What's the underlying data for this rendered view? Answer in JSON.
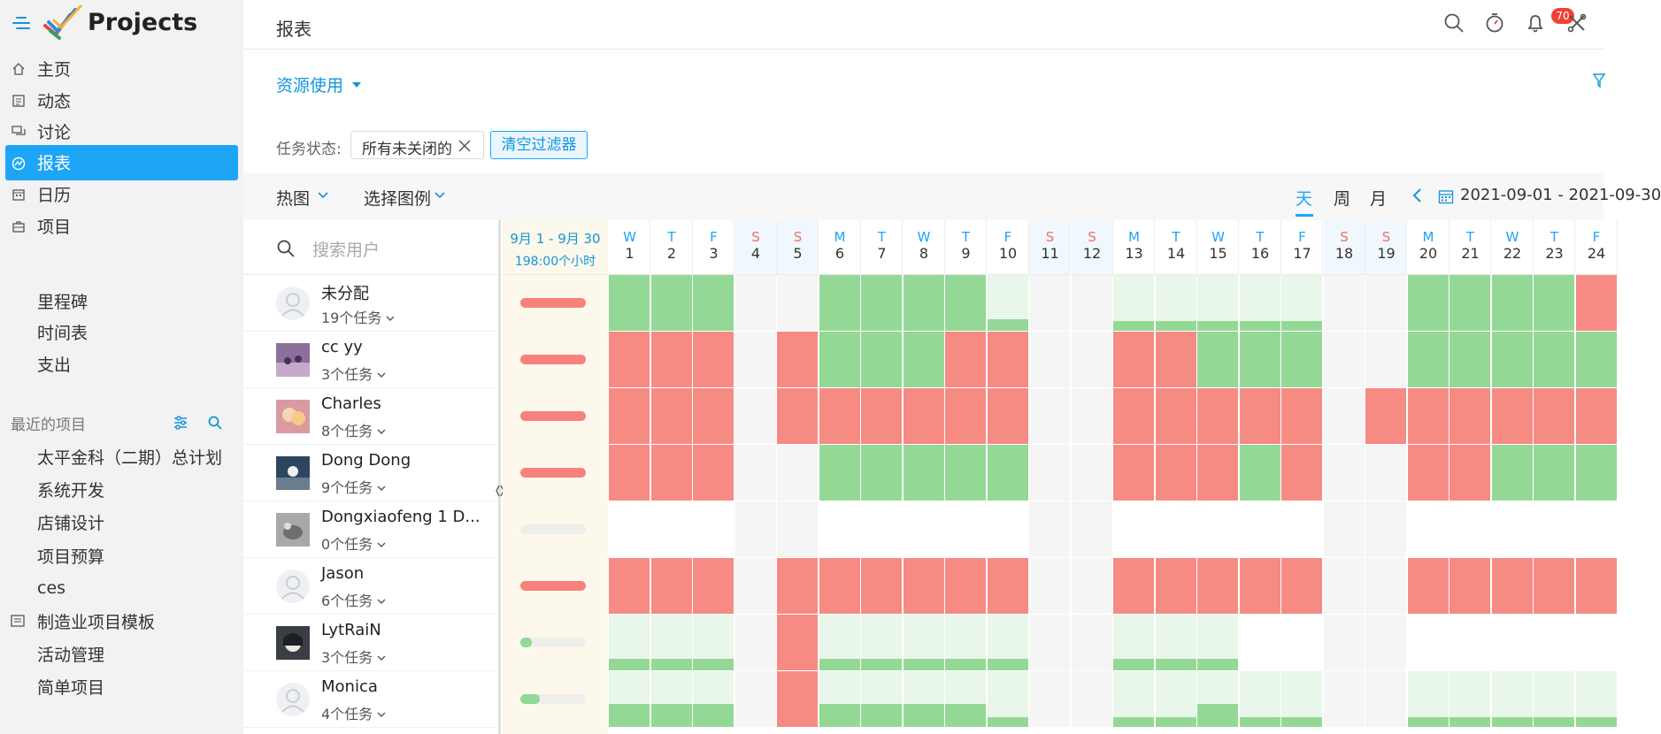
{
  "app": {
    "title": "Projects"
  },
  "nav": [
    {
      "label": "主页",
      "icon": "home-icon",
      "active": false
    },
    {
      "label": "动态",
      "icon": "feed-icon",
      "active": false
    },
    {
      "label": "讨论",
      "icon": "discussion-icon",
      "active": false
    },
    {
      "label": "报表",
      "icon": "report-icon",
      "active": true
    },
    {
      "label": "日历",
      "icon": "calendar-icon",
      "active": false
    },
    {
      "label": "项目",
      "icon": "briefcase-icon",
      "active": false
    }
  ],
  "subnav": [
    "里程碑",
    "时间表",
    "支出"
  ],
  "recent": {
    "title": "最近的项目",
    "items": [
      "太平金科（二期）总计划",
      "系统开发",
      "店铺设计",
      "项目预算",
      "ces",
      "制造业项目模板",
      "活动管理",
      "简单项目"
    ]
  },
  "header": {
    "title": "报表",
    "notifications": "70"
  },
  "report": {
    "selector": "资源使用",
    "filter_label": "任务状态:",
    "filter_chip": "所有未关闭的",
    "clear_filters": "清空过滤器",
    "view_type": "热图",
    "legend_select": "选择图例",
    "tabs": [
      "天",
      "周",
      "月"
    ],
    "date_range": "2021-09-01 - 2021-09-30"
  },
  "grid": {
    "search_placeholder": "搜索用户",
    "summary_range": "9月 1 - 9月 30",
    "summary_hours": "198:00个小时",
    "days": [
      {
        "l": "W",
        "n": "1",
        "we": false
      },
      {
        "l": "T",
        "n": "2",
        "we": false
      },
      {
        "l": "F",
        "n": "3",
        "we": false
      },
      {
        "l": "S",
        "n": "4",
        "we": true
      },
      {
        "l": "S",
        "n": "5",
        "we": true
      },
      {
        "l": "M",
        "n": "6",
        "we": false
      },
      {
        "l": "T",
        "n": "7",
        "we": false
      },
      {
        "l": "W",
        "n": "8",
        "we": false
      },
      {
        "l": "T",
        "n": "9",
        "we": false
      },
      {
        "l": "F",
        "n": "10",
        "we": false
      },
      {
        "l": "S",
        "n": "11",
        "we": true
      },
      {
        "l": "S",
        "n": "12",
        "we": true
      },
      {
        "l": "M",
        "n": "13",
        "we": false
      },
      {
        "l": "T",
        "n": "14",
        "we": false
      },
      {
        "l": "W",
        "n": "15",
        "we": false
      },
      {
        "l": "T",
        "n": "16",
        "we": false
      },
      {
        "l": "F",
        "n": "17",
        "we": false
      },
      {
        "l": "S",
        "n": "18",
        "we": true
      },
      {
        "l": "S",
        "n": "19",
        "we": true
      },
      {
        "l": "M",
        "n": "20",
        "we": false
      },
      {
        "l": "T",
        "n": "21",
        "we": false
      },
      {
        "l": "W",
        "n": "22",
        "we": false
      },
      {
        "l": "T",
        "n": "23",
        "we": false
      },
      {
        "l": "F",
        "n": "24",
        "we": false
      }
    ],
    "users": [
      {
        "name": "未分配",
        "tasks": "19个任务",
        "avatar": "none",
        "summary_color": "#f7827c",
        "summary_fill": 1.0,
        "cells": "GGGWWGGGGaWWbbbbbWWGGGGR"
      },
      {
        "name": "cc yy",
        "tasks": "3个任务",
        "avatar": "purple",
        "summary_color": "#f7827c",
        "summary_fill": 1.0,
        "cells": "RRRWRGGGRRWWRRGGGWWGGGGG"
      },
      {
        "name": "Charles",
        "tasks": "8个任务",
        "avatar": "pink",
        "summary_color": "#f7827c",
        "summary_fill": 1.0,
        "cells": "RRRWRRRRRRWWRRRRRWRRRRRR"
      },
      {
        "name": "Dong Dong",
        "tasks": "9个任务",
        "avatar": "dark",
        "summary_color": "#f7827c",
        "summary_fill": 1.0,
        "cells": "RRRWWGGGGGWWRRRGRWWRRGGG"
      },
      {
        "name": "Dongxiaofeng 1 D...",
        "tasks": "0个任务",
        "avatar": "grey",
        "summary_color": "#eeeeea",
        "summary_fill": 0,
        "cells": "EEEWWEEEEEWWEEEEEWWEEEEE"
      },
      {
        "name": "Jason",
        "tasks": "6个任务",
        "avatar": "none",
        "summary_color": "#f7827c",
        "summary_fill": 1.0,
        "cells": "RRRWRRRRRRWWRRRRRWWRRRRR"
      },
      {
        "name": "LytRaiN",
        "tasks": "3个任务",
        "avatar": "anime",
        "summary_color": "#90d895",
        "summary_fill": 0.18,
        "cells": "cccWRcccccWWcccEEWWEEEEE"
      },
      {
        "name": "Monica",
        "tasks": "4个任务",
        "avatar": "none",
        "summary_color": "#90d895",
        "summary_fill": 0.3,
        "cells": "dddWRddddbWWbbdbbWWbbbbb"
      }
    ],
    "legend_colors": {
      "G": "#94d896",
      "R": "#f68b84",
      "light": "#e9f6ea"
    }
  }
}
